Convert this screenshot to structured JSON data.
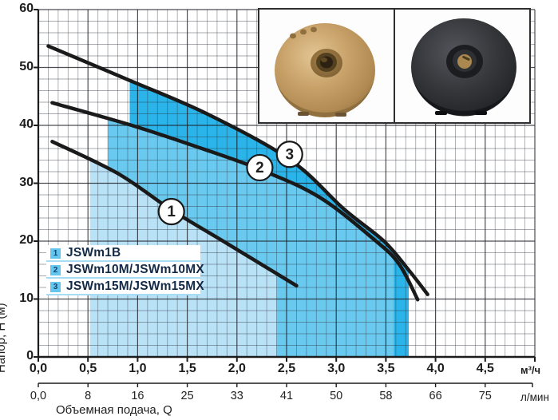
{
  "chart_data": {
    "type": "line",
    "title": "",
    "xlabel": "Объемная подача, Q",
    "ylabel": "Напор, H (м)",
    "xlim": [
      0,
      5
    ],
    "ylim": [
      0,
      60
    ],
    "grid": {
      "minor_x": 0.1,
      "minor_y": 2,
      "major_x": 0.5,
      "major_y": 10,
      "on": true
    },
    "x_axis_primary": {
      "unit": "м³/ч",
      "tick_values": [
        0,
        0.5,
        1,
        1.5,
        2,
        2.5,
        3,
        3.5,
        4,
        4.5
      ],
      "tick_labels": [
        "0,0",
        "0,5",
        "1,0",
        "1,5",
        "2,0",
        "2,5",
        "3,0",
        "3,5",
        "4,0",
        "4,5"
      ]
    },
    "x_axis_secondary": {
      "unit": "л/мин",
      "tick_values": [
        0,
        0.5,
        1,
        1.5,
        2,
        2.5,
        3,
        3.5,
        4,
        4.5
      ],
      "tick_labels": [
        "0,0",
        "8",
        "16",
        "25",
        "33",
        "41",
        "50",
        "58",
        "66",
        "75"
      ]
    },
    "y_axis": {
      "tick_values": [
        0,
        10,
        20,
        30,
        40,
        50,
        60
      ],
      "tick_labels": [
        "0",
        "10",
        "20",
        "30",
        "40",
        "50",
        "60"
      ]
    },
    "series": [
      {
        "id": 1,
        "name": "JSWm1B",
        "points": [
          [
            0.14,
            37.2
          ],
          [
            0.8,
            31.7
          ],
          [
            1.34,
            25.4
          ],
          [
            1.9,
            19.6
          ],
          [
            2.6,
            12.3
          ]
        ],
        "label": "1",
        "label_pos": [
          1.34,
          25.1
        ]
      },
      {
        "id": 2,
        "name": "JSWm10M/JSWm10MX",
        "points": [
          [
            0.14,
            43.9
          ],
          [
            0.96,
            39.9
          ],
          [
            1.63,
            36.1
          ],
          [
            2.23,
            32.4
          ],
          [
            2.83,
            27.6
          ],
          [
            3.38,
            20.3
          ],
          [
            3.63,
            16.1
          ],
          [
            3.82,
            9.9
          ]
        ],
        "label": "2",
        "label_pos": [
          2.23,
          32.7
        ]
      },
      {
        "id": 3,
        "name": "JSWm15M/JSWm15MX",
        "points": [
          [
            0.1,
            53.7
          ],
          [
            0.9,
            47.9
          ],
          [
            1.71,
            41.9
          ],
          [
            2.54,
            34.0
          ],
          [
            3.08,
            25.5
          ],
          [
            3.48,
            20.0
          ],
          [
            3.73,
            15.0
          ],
          [
            3.92,
            10.8
          ]
        ],
        "label": "3",
        "label_pos": [
          2.53,
          35.0
        ]
      }
    ],
    "regions": [
      {
        "series": 3,
        "q_min": 0.92,
        "q_max": 3.73,
        "color": "#2ab4e9"
      },
      {
        "series": 2,
        "q_min": 0.7,
        "q_max": 3.58,
        "color": "#6ac9ef"
      },
      {
        "series": 1,
        "q_min": 0.52,
        "q_max": 2.4,
        "color": "#b9e2f7"
      }
    ],
    "legend_position": "inside-left-middle"
  },
  "legend": {
    "items": [
      {
        "num": "1",
        "label": "JSWm1B"
      },
      {
        "num": "2",
        "label": "JSWm10M/JSWm10MX"
      },
      {
        "num": "3",
        "label": "JSWm15M/JSWm15MX"
      }
    ]
  },
  "colors": {
    "curve": "#1a1a1a",
    "minor_grid": "rgba(45,52,62,0.42)",
    "major_grid": "rgba(25,28,34,0.78)",
    "axis": "#1c1c1c",
    "legend_badge": "#62c6ee",
    "legend_separator": "#a6dcf4",
    "legend_text": "#132a47"
  }
}
